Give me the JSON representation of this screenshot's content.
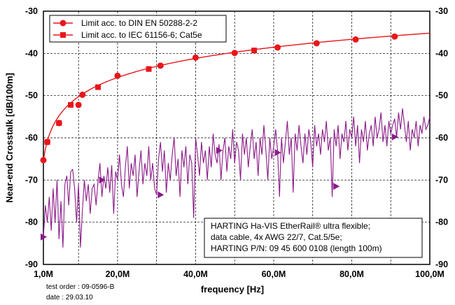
{
  "chart_data": {
    "type": "line",
    "xlabel": "frequency [Hz]",
    "ylabel": "Near-end Crosstalk [dB/100m]",
    "xlim": [
      1,
      100
    ],
    "ylim": [
      -90,
      -30
    ],
    "x_ticks": [
      {
        "value": 1,
        "label": "1,0M"
      },
      {
        "value": 20,
        "label": "20,0M"
      },
      {
        "value": 40,
        "label": "40,0M"
      },
      {
        "value": 60,
        "label": "60,0M"
      },
      {
        "value": 80,
        "label": "80,0M"
      },
      {
        "value": 100,
        "label": "100,0M"
      }
    ],
    "y_ticks": [
      {
        "value": -30,
        "label": "-30"
      },
      {
        "value": -40,
        "label": "-40"
      },
      {
        "value": -50,
        "label": "-50"
      },
      {
        "value": -60,
        "label": "-60"
      },
      {
        "value": -70,
        "label": "-70"
      },
      {
        "value": -80,
        "label": "-80"
      },
      {
        "value": -90,
        "label": "-90"
      }
    ],
    "grid": true,
    "legend_position": "top-left",
    "series": [
      {
        "name": "Limit acc. to DIN EN 50288-2-2",
        "color": "#e8161b",
        "marker": "circle",
        "points": [
          [
            1,
            -65.3
          ],
          [
            2,
            -61.0
          ],
          [
            5,
            -56.5
          ],
          [
            10,
            -52.2
          ],
          [
            11,
            -49.8
          ],
          [
            20,
            -45.3
          ],
          [
            31,
            -42.9
          ],
          [
            40,
            -41.0
          ],
          [
            50,
            -39.9
          ],
          [
            61,
            -38.6
          ],
          [
            71,
            -37.6
          ],
          [
            81,
            -36.7
          ],
          [
            91,
            -36.0
          ]
        ]
      },
      {
        "name": "Limit acc. to IEC 61156-6; Cat5e",
        "color": "#e8161b",
        "marker": "square",
        "points": [
          [
            2,
            -61.0
          ],
          [
            5,
            -56.5
          ],
          [
            8,
            -52.2
          ],
          [
            15,
            -48.0
          ],
          [
            28,
            -43.7
          ],
          [
            55,
            -39.3
          ]
        ]
      },
      {
        "name": "",
        "color": "#8b1a89",
        "marker": "triangle",
        "points": [
          [
            1,
            -83.5
          ],
          [
            1.5,
            -76.0
          ],
          [
            2,
            -80.0
          ],
          [
            2.5,
            -74.0
          ],
          [
            3,
            -82.0
          ],
          [
            3.5,
            -72.0
          ],
          [
            4,
            -80.0
          ],
          [
            4.5,
            -70.0
          ],
          [
            5,
            -84.0
          ],
          [
            5.5,
            -75.0
          ],
          [
            6,
            -86.0
          ],
          [
            6.5,
            -71.0
          ],
          [
            7,
            -69.0
          ],
          [
            7.5,
            -76.0
          ],
          [
            8,
            -68.0
          ],
          [
            8.5,
            -67.5
          ],
          [
            9,
            -72.0
          ],
          [
            9.5,
            -80.0
          ],
          [
            10,
            -71.0
          ],
          [
            10.5,
            -86.0
          ],
          [
            11,
            -77.0
          ],
          [
            11.5,
            -70.0
          ],
          [
            12,
            -75.0
          ],
          [
            12.5,
            -71.0
          ],
          [
            13,
            -78.0
          ],
          [
            13.5,
            -72.0
          ],
          [
            14,
            -71.0
          ],
          [
            14.5,
            -76.0
          ],
          [
            15,
            -70.0
          ],
          [
            15.5,
            -66.0
          ],
          [
            16,
            -74.0
          ],
          [
            16.5,
            -69.0
          ],
          [
            17,
            -72.0
          ],
          [
            17.5,
            -67.0
          ],
          [
            18,
            -73.0
          ],
          [
            18.5,
            -66.5
          ],
          [
            19,
            -78.0
          ],
          [
            19.5,
            -68.0
          ],
          [
            20,
            -70.0
          ],
          [
            20.5,
            -64.0
          ],
          [
            21,
            -71.0
          ],
          [
            21.5,
            -74.0
          ],
          [
            22,
            -67.0
          ],
          [
            22.5,
            -62.0
          ],
          [
            23,
            -72.0
          ],
          [
            23.5,
            -66.0
          ],
          [
            24,
            -69.0
          ],
          [
            24.5,
            -64.0
          ],
          [
            25,
            -74.0
          ],
          [
            25.5,
            -68.0
          ],
          [
            26,
            -63.0
          ],
          [
            26.5,
            -71.0
          ],
          [
            27,
            -66.0
          ],
          [
            27.5,
            -69.0
          ],
          [
            28,
            -62.0
          ],
          [
            28.5,
            -70.0
          ],
          [
            29,
            -66.0
          ],
          [
            29.5,
            -72.0
          ],
          [
            30,
            -73.5
          ],
          [
            30.5,
            -65.0
          ],
          [
            31,
            -61.0
          ],
          [
            31.5,
            -68.0
          ],
          [
            32,
            -63.0
          ],
          [
            32.5,
            -73.0
          ],
          [
            33,
            -66.0
          ],
          [
            33.5,
            -70.0
          ],
          [
            34,
            -64.0
          ],
          [
            34.5,
            -60.0
          ],
          [
            35,
            -69.0
          ],
          [
            35.5,
            -65.0
          ],
          [
            36,
            -74.0
          ],
          [
            36.5,
            -63.0
          ],
          [
            37,
            -67.0
          ],
          [
            37.5,
            -62.0
          ],
          [
            38,
            -71.0
          ],
          [
            38.5,
            -64.0
          ],
          [
            39,
            -66.0
          ],
          [
            39.5,
            -79.0
          ],
          [
            40,
            -60.0
          ],
          [
            40.5,
            -64.0
          ],
          [
            41,
            -69.0
          ],
          [
            41.5,
            -61.0
          ],
          [
            42,
            -66.0
          ],
          [
            42.5,
            -63.0
          ],
          [
            43,
            -70.0
          ],
          [
            43.5,
            -62.0
          ],
          [
            44,
            -67.0
          ],
          [
            44.5,
            -59.0
          ],
          [
            45,
            -64.0
          ],
          [
            45.5,
            -66.0
          ],
          [
            46,
            -61.5
          ],
          [
            46.5,
            -70.0
          ],
          [
            47,
            -63.0
          ],
          [
            47.5,
            -60.0
          ],
          [
            48,
            -68.0
          ],
          [
            48.5,
            -62.0
          ],
          [
            49,
            -65.0
          ],
          [
            49.5,
            -58.0
          ],
          [
            50,
            -66.0
          ],
          [
            50.5,
            -61.0
          ],
          [
            51,
            -63.0
          ],
          [
            51.5,
            -70.0
          ],
          [
            52,
            -59.0
          ],
          [
            52.5,
            -64.0
          ],
          [
            53,
            -60.0
          ],
          [
            53.5,
            -67.0
          ],
          [
            54,
            -62.0
          ],
          [
            54.5,
            -58.0
          ],
          [
            55,
            -65.0
          ],
          [
            55.5,
            -61.0
          ],
          [
            56,
            -69.0
          ],
          [
            56.5,
            -60.0
          ],
          [
            57,
            -64.0
          ],
          [
            57.5,
            -57.0
          ],
          [
            58,
            -63.0
          ],
          [
            58.5,
            -70.0
          ],
          [
            59,
            -60.0
          ],
          [
            59.5,
            -65.0
          ],
          [
            60,
            -62.0
          ],
          [
            60.5,
            -58.0
          ],
          [
            61,
            -63.0
          ],
          [
            61.5,
            -74.0
          ],
          [
            62,
            -60.0
          ],
          [
            62.5,
            -66.0
          ],
          [
            63,
            -61.0
          ],
          [
            63.5,
            -56.0
          ],
          [
            64,
            -64.0
          ],
          [
            64.5,
            -60.0
          ],
          [
            65,
            -73.0
          ],
          [
            65.5,
            -59.0
          ],
          [
            66,
            -63.0
          ],
          [
            66.5,
            -57.0
          ],
          [
            67,
            -62.0
          ],
          [
            67.5,
            -66.0
          ],
          [
            68,
            -59.0
          ],
          [
            68.5,
            -64.0
          ],
          [
            69,
            -58.0
          ],
          [
            69.5,
            -61.0
          ],
          [
            70,
            -67.0
          ],
          [
            70.5,
            -57.0
          ],
          [
            71,
            -62.0
          ],
          [
            71.5,
            -59.0
          ],
          [
            72,
            -64.0
          ],
          [
            72.5,
            -58.0
          ],
          [
            73,
            -61.0
          ],
          [
            73.5,
            -56.0
          ],
          [
            74,
            -63.0
          ],
          [
            74.5,
            -60.0
          ],
          [
            75,
            -74.0
          ],
          [
            75.5,
            -58.0
          ],
          [
            76,
            -62.0
          ],
          [
            76.5,
            -57.0
          ],
          [
            77,
            -65.0
          ],
          [
            77.5,
            -59.0
          ],
          [
            78,
            -61.0
          ],
          [
            78.5,
            -56.0
          ],
          [
            79,
            -63.0
          ],
          [
            79.5,
            -58.0
          ],
          [
            80,
            -60.0
          ],
          [
            80.5,
            -55.0
          ],
          [
            81,
            -62.0
          ],
          [
            81.5,
            -57.0
          ],
          [
            82,
            -66.0
          ],
          [
            82.5,
            -58.0
          ],
          [
            83,
            -61.0
          ],
          [
            83.5,
            -56.0
          ],
          [
            84,
            -63.0
          ],
          [
            84.5,
            -59.0
          ],
          [
            85,
            -57.0
          ],
          [
            85.5,
            -62.0
          ],
          [
            86,
            -55.0
          ],
          [
            86.5,
            -60.0
          ],
          [
            87,
            -58.0
          ],
          [
            87.5,
            -54.0
          ],
          [
            88,
            -61.0
          ],
          [
            88.5,
            -57.0
          ],
          [
            89,
            -62.0
          ],
          [
            89.5,
            -56.0
          ],
          [
            90,
            -59.0
          ],
          [
            90.5,
            -57.0
          ],
          [
            91,
            -55.5
          ],
          [
            91.5,
            -60.0
          ],
          [
            92,
            -54.0
          ],
          [
            92.5,
            -58.0
          ],
          [
            93,
            -53.0
          ],
          [
            93.5,
            -57.0
          ],
          [
            94,
            -61.0
          ],
          [
            94.5,
            -56.0
          ],
          [
            95,
            -63.0
          ],
          [
            95.5,
            -58.0
          ],
          [
            96,
            -60.0
          ],
          [
            96.5,
            -56.0
          ],
          [
            97,
            -62.0
          ],
          [
            97.5,
            -57.0
          ],
          [
            98,
            -59.0
          ],
          [
            98.5,
            -55.0
          ],
          [
            99,
            -58.0
          ],
          [
            99.5,
            -57.0
          ],
          [
            100,
            -55.0
          ]
        ],
        "markers": [
          [
            1,
            -83.5
          ],
          [
            16,
            -70.0
          ],
          [
            31,
            -73.5
          ],
          [
            46,
            -63.0
          ],
          [
            61,
            -63.5
          ],
          [
            76,
            -71.5
          ],
          [
            91,
            -59.8
          ]
        ]
      }
    ]
  },
  "note_box": {
    "line1": "HARTING Ha-VIS EtherRail® ultra flexible;",
    "line2": "data cable, 4x AWG 22/7, Cat.5/5e;",
    "line3": "HARTING P/N: 09 45 600 0108 (length 100m)"
  },
  "footer": {
    "test_order": "test order : 09-0596-B",
    "date": "date : 29.03.10"
  }
}
